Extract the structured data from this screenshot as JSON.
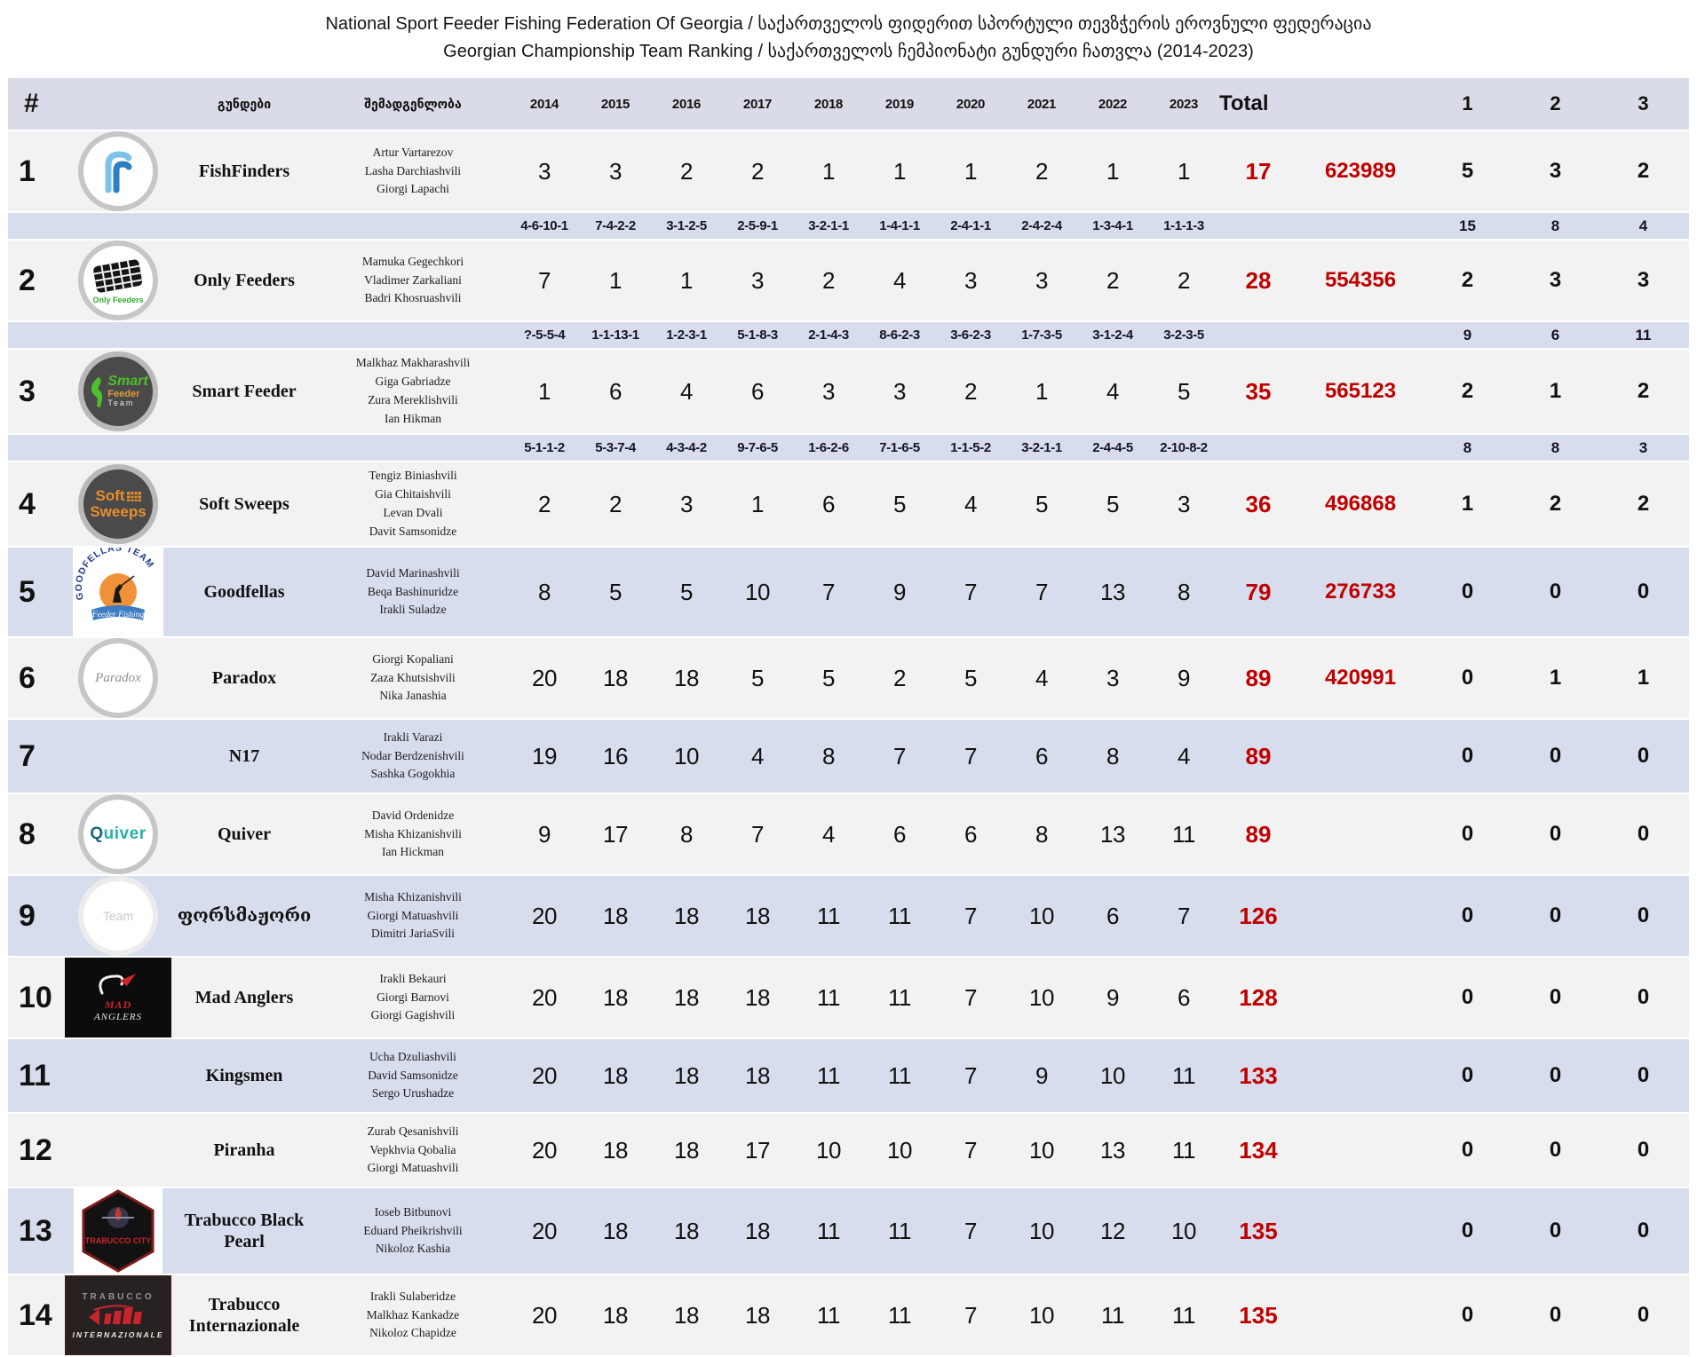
{
  "title": {
    "line1": "National Sport Feeder Fishing Federation Of Georgia / საქართველოს ფიდერით სპორტული თევზჭერის ეროვნული ფედერაცია",
    "line2": "Georgian Championship Team Ranking / საქართველოს ჩემპიონატი გუნდური ჩათვლა (2014-2023)"
  },
  "colors": {
    "accent_red": "#c00000",
    "header_bg": "#d9dce8",
    "row_light": "#f2f2f2",
    "row_accent": "#d8ddee"
  },
  "header": {
    "rank": "#",
    "teams_label": "გუნდები",
    "roster_label": "შემადგენლობა",
    "years": [
      "2014",
      "2015",
      "2016",
      "2017",
      "2018",
      "2019",
      "2020",
      "2021",
      "2022",
      "2023"
    ],
    "total_label": "Total",
    "pos1": "1",
    "pos2": "2",
    "pos3": "3"
  },
  "rows": [
    {
      "rank": "1",
      "team": "FishFinders",
      "logo": "fishfinders",
      "logo_text": [],
      "members": [
        "Artur Vartarezov",
        "Lasha Darchiashvili",
        "Giorgi Lapachi"
      ],
      "years": [
        "3",
        "3",
        "2",
        "2",
        "1",
        "1",
        "1",
        "2",
        "1",
        "1"
      ],
      "total": "17",
      "points": "623989",
      "pos1": "5",
      "pos2": "3",
      "pos3": "2",
      "detail": {
        "years": [
          "4-6-10-1",
          "7-4-2-2",
          "3-1-2-5",
          "2-5-9-1",
          "3-2-1-1",
          "1-4-1-1",
          "2-4-1-1",
          "2-4-2-4",
          "1-3-4-1",
          "1-1-1-3"
        ],
        "pos1": "15",
        "pos2": "8",
        "pos3": "4"
      }
    },
    {
      "rank": "2",
      "team": "Only Feeders",
      "logo": "onlyfeeders",
      "logo_text": [
        "Only Feeders"
      ],
      "members": [
        "Mamuka Gegechkori",
        "Vladimer Zarkaliani",
        "Badri Khosruashvili"
      ],
      "years": [
        "7",
        "1",
        "1",
        "3",
        "2",
        "4",
        "3",
        "3",
        "2",
        "2"
      ],
      "total": "28",
      "points": "554356",
      "pos1": "2",
      "pos2": "3",
      "pos3": "3",
      "detail": {
        "years": [
          "?-5-5-4",
          "1-1-13-1",
          "1-2-3-1",
          "5-1-8-3",
          "2-1-4-3",
          "8-6-2-3",
          "3-6-2-3",
          "1-7-3-5",
          "3-1-2-4",
          "3-2-3-5"
        ],
        "pos1": "9",
        "pos2": "6",
        "pos3": "11"
      }
    },
    {
      "rank": "3",
      "team": "Smart Feeder",
      "logo": "smartfeeder",
      "logo_text": [
        "Smart",
        "Feeder",
        "Team"
      ],
      "members": [
        "Malkhaz Makharashvili",
        "Giga Gabriadze",
        "Zura Mereklishvili",
        "Ian Hikman"
      ],
      "years": [
        "1",
        "6",
        "4",
        "6",
        "3",
        "3",
        "2",
        "1",
        "4",
        "5"
      ],
      "total": "35",
      "points": "565123",
      "pos1": "2",
      "pos2": "1",
      "pos3": "2",
      "detail": {
        "years": [
          "5-1-1-2",
          "5-3-7-4",
          "4-3-4-2",
          "9-7-6-5",
          "1-6-2-6",
          "7-1-6-5",
          "1-1-5-2",
          "3-2-1-1",
          "2-4-4-5",
          "2-10-8-2"
        ],
        "pos1": "8",
        "pos2": "8",
        "pos3": "3"
      }
    },
    {
      "rank": "4",
      "team": "Soft Sweeps",
      "logo": "softsweeps",
      "logo_text": [
        "Soft",
        "Sweeps"
      ],
      "members": [
        "Tengiz Biniashvili",
        "Gia Chitaishvili",
        "Levan Dvali",
        "Davit Samsonidze"
      ],
      "years": [
        "2",
        "2",
        "3",
        "1",
        "6",
        "5",
        "4",
        "5",
        "5",
        "3"
      ],
      "total": "36",
      "points": "496868",
      "pos1": "1",
      "pos2": "2",
      "pos3": "2",
      "detail": null
    },
    {
      "rank": "5",
      "team": "Goodfellas",
      "logo": "goodfellas",
      "logo_text": [
        "GOODFELLAS TEAM",
        "Feeder Fishing"
      ],
      "members": [
        "David Marinashvili",
        "Beqa Bashinuridze",
        "Irakli Suladze"
      ],
      "years": [
        "8",
        "5",
        "5",
        "10",
        "7",
        "9",
        "7",
        "7",
        "13",
        "8"
      ],
      "total": "79",
      "points": "276733",
      "pos1": "0",
      "pos2": "0",
      "pos3": "0",
      "detail": null
    },
    {
      "rank": "6",
      "team": "Paradox",
      "logo": "paradox",
      "logo_text": [
        "Paradox"
      ],
      "members": [
        "Giorgi Kopaliani",
        "Zaza Khutsishvili",
        "Nika Janashia"
      ],
      "years": [
        "20",
        "18",
        "18",
        "5",
        "5",
        "2",
        "5",
        "4",
        "3",
        "9"
      ],
      "total": "89",
      "points": "420991",
      "pos1": "0",
      "pos2": "1",
      "pos3": "1",
      "detail": null
    },
    {
      "rank": "7",
      "team": "N17",
      "logo": "none",
      "logo_text": [],
      "members": [
        "Irakli Varazi",
        "Nodar Berdzenishvili",
        "Sashka Gogokhia"
      ],
      "years": [
        "19",
        "16",
        "10",
        "4",
        "8",
        "7",
        "7",
        "6",
        "8",
        "4"
      ],
      "total": "89",
      "points": "",
      "pos1": "0",
      "pos2": "0",
      "pos3": "0",
      "detail": null
    },
    {
      "rank": "8",
      "team": "Quiver",
      "logo": "quiver",
      "logo_text": [
        "Quiver"
      ],
      "members": [
        "David Ordenidze",
        "Misha Khizanishvili",
        "Ian Hickman"
      ],
      "years": [
        "9",
        "17",
        "8",
        "7",
        "4",
        "6",
        "6",
        "8",
        "13",
        "11"
      ],
      "total": "89",
      "points": "",
      "pos1": "0",
      "pos2": "0",
      "pos3": "0",
      "detail": null
    },
    {
      "rank": "9",
      "team": "ფორსმაჟორი",
      "logo": "forsmajori",
      "logo_text": [
        "Team"
      ],
      "members": [
        "Misha Khizanishvili",
        "Giorgi Matuashvili",
        "Dimitri JariaSvili"
      ],
      "years": [
        "20",
        "18",
        "18",
        "18",
        "11",
        "11",
        "7",
        "10",
        "6",
        "7"
      ],
      "total": "126",
      "points": "",
      "pos1": "0",
      "pos2": "0",
      "pos3": "0",
      "detail": null
    },
    {
      "rank": "10",
      "team": "Mad Anglers",
      "logo": "madanglers",
      "logo_text": [
        "MAD",
        "ANGLERS"
      ],
      "members": [
        "Irakli Bekauri",
        "Giorgi Barnovi",
        "Giorgi Gagishvili"
      ],
      "years": [
        "20",
        "18",
        "18",
        "18",
        "11",
        "11",
        "7",
        "10",
        "9",
        "6"
      ],
      "total": "128",
      "points": "",
      "pos1": "0",
      "pos2": "0",
      "pos3": "0",
      "detail": null
    },
    {
      "rank": "11",
      "team": "Kingsmen",
      "logo": "none",
      "logo_text": [],
      "members": [
        "Ucha Dzuliashvili",
        "David Samsonidze",
        "Sergo Urushadze"
      ],
      "years": [
        "20",
        "18",
        "18",
        "18",
        "11",
        "11",
        "7",
        "9",
        "10",
        "11"
      ],
      "total": "133",
      "points": "",
      "pos1": "0",
      "pos2": "0",
      "pos3": "0",
      "detail": null
    },
    {
      "rank": "12",
      "team": "Piranha",
      "logo": "none",
      "logo_text": [],
      "members": [
        "Zurab Qesanishvili",
        "Vepkhvia Qobalia",
        "Giorgi Matuashvili"
      ],
      "years": [
        "20",
        "18",
        "18",
        "17",
        "10",
        "10",
        "7",
        "10",
        "13",
        "11"
      ],
      "total": "134",
      "points": "",
      "pos1": "0",
      "pos2": "0",
      "pos3": "0",
      "detail": null
    },
    {
      "rank": "13",
      "team": "Trabucco Black Pearl",
      "logo": "trabuccoblackpearl",
      "logo_text": [
        "TRABUCCO CITY"
      ],
      "members": [
        "Ioseb Bitbunovi",
        "Eduard Pheikrishvili",
        "Nikoloz Kashia"
      ],
      "years": [
        "20",
        "18",
        "18",
        "18",
        "11",
        "11",
        "7",
        "10",
        "12",
        "10"
      ],
      "total": "135",
      "points": "",
      "pos1": "0",
      "pos2": "0",
      "pos3": "0",
      "detail": null
    },
    {
      "rank": "14",
      "team": "Trabucco Internazionale",
      "logo": "trabuccointl",
      "logo_text": [
        "TRABUCCO",
        "INTERNAZIONALE"
      ],
      "members": [
        "Irakli Sulaberidze",
        "Malkhaz Kankadze",
        "Nikoloz Chapidze"
      ],
      "years": [
        "20",
        "18",
        "18",
        "18",
        "11",
        "11",
        "7",
        "10",
        "11",
        "11"
      ],
      "total": "135",
      "points": "",
      "pos1": "0",
      "pos2": "0",
      "pos3": "0",
      "detail": null
    }
  ]
}
